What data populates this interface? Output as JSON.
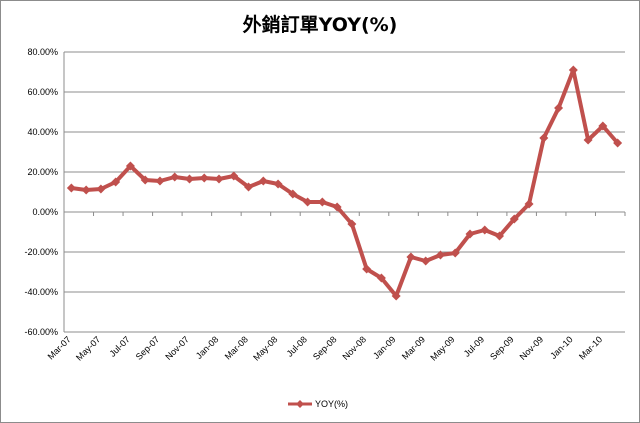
{
  "chart_data": {
    "type": "line",
    "title": "外銷訂單YOY(%)",
    "xlabel": "",
    "ylabel": "",
    "ylim": [
      -60,
      80
    ],
    "yticks": [
      "80.00%",
      "60.00%",
      "40.00%",
      "20.00%",
      "0.00%",
      "-20.00%",
      "-40.00%",
      "-60.00%"
    ],
    "ytick_values": [
      80,
      60,
      40,
      20,
      0,
      -20,
      -40,
      -60
    ],
    "grid": true,
    "legend_position": "bottom",
    "categories": [
      "Mar-07",
      "Apr-07",
      "May-07",
      "Jun-07",
      "Jul-07",
      "Aug-07",
      "Sep-07",
      "Oct-07",
      "Nov-07",
      "Dec-07",
      "Jan-08",
      "Feb-08",
      "Mar-08",
      "Apr-08",
      "May-08",
      "Jun-08",
      "Jul-08",
      "Aug-08",
      "Sep-08",
      "Oct-08",
      "Nov-08",
      "Dec-08",
      "Jan-09",
      "Feb-09",
      "Mar-09",
      "Apr-09",
      "May-09",
      "Jun-09",
      "Jul-09",
      "Aug-09",
      "Sep-09",
      "Oct-09",
      "Nov-09",
      "Dec-09",
      "Jan-10",
      "Feb-10",
      "Mar-10",
      "Apr-10"
    ],
    "xtick_labels": [
      "Mar-07",
      "May-07",
      "Jul-07",
      "Sep-07",
      "Nov-07",
      "Jan-08",
      "Mar-08",
      "May-08",
      "Jul-08",
      "Sep-08",
      "Nov-08",
      "Jan-09",
      "Mar-09",
      "May-09",
      "Jul-09",
      "Sep-09",
      "Nov-09",
      "Jan-10",
      "Mar-10"
    ],
    "series": [
      {
        "name": "YOY(%)",
        "color": "#c0504d",
        "marker": "diamond",
        "values": [
          12,
          11,
          11.5,
          15,
          23,
          16,
          15.5,
          17.5,
          16.5,
          17,
          16.5,
          18,
          12.5,
          15.5,
          14,
          9,
          5,
          5,
          2.5,
          -6,
          -28.5,
          -33,
          -42,
          -22.5,
          -24.5,
          -21.5,
          -20.5,
          -11,
          -9,
          -12,
          -3.5,
          4,
          37,
          52,
          71,
          36,
          43,
          34.5
        ]
      }
    ]
  }
}
